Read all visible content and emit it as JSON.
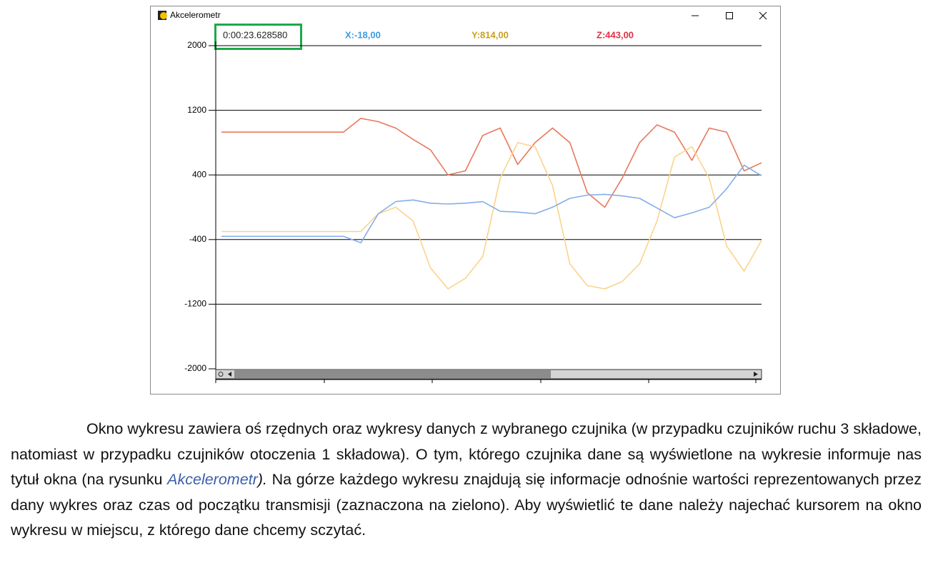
{
  "window": {
    "title": "Akcelerometr",
    "readouts": {
      "time": "0:00:23.628580",
      "x": "X:-18,00",
      "y": "Y:814,00",
      "z": "Z:443,00"
    }
  },
  "chart_data": {
    "type": "line",
    "categories": [
      null,
      null,
      null,
      null,
      null,
      null,
      null,
      null,
      null,
      null,
      null,
      null,
      null,
      null,
      null,
      null,
      null,
      null,
      null,
      null,
      null,
      null,
      null,
      null,
      null,
      null,
      null,
      null,
      null,
      null,
      null,
      null
    ],
    "ylim": [
      -2000,
      2000
    ],
    "yticks": [
      -2000,
      -1200,
      -400,
      400,
      1200,
      2000
    ],
    "grid": true,
    "series": [
      {
        "color": "#e8785c",
        "values": [
          930,
          930,
          930,
          930,
          930,
          930,
          930,
          930,
          1100,
          1060,
          980,
          840,
          710,
          400,
          450,
          890,
          980,
          530,
          800,
          980,
          800,
          180,
          0,
          360,
          800,
          1020,
          930,
          580,
          980,
          930,
          450,
          550
        ]
      },
      {
        "color": "#fcd38c",
        "values": [
          -300,
          -300,
          -300,
          -300,
          -300,
          -300,
          -300,
          -300,
          -300,
          -80,
          0,
          -170,
          -750,
          -1010,
          -880,
          -610,
          360,
          800,
          750,
          270,
          -700,
          -970,
          -1010,
          -920,
          -700,
          -170,
          620,
          750,
          360,
          -480,
          -790,
          -410
        ]
      },
      {
        "color": "#84aee8",
        "values": [
          -360,
          -360,
          -360,
          -360,
          -360,
          -360,
          -360,
          -360,
          -440,
          -80,
          70,
          90,
          50,
          40,
          50,
          70,
          -50,
          -60,
          -80,
          0,
          110,
          150,
          160,
          140,
          110,
          -10,
          -130,
          -70,
          0,
          230,
          520,
          390
        ]
      }
    ]
  },
  "paragraph": {
    "main": "Okno wykresu zawiera oś rzędnych oraz wykresy danych z wybranego czujnika (w przypadku czujników ruchu 3 składowe, natomiast w przypadku czujników otoczenia 1 składowa). O tym, którego czujnika dane są wyświetlone na wykresie informuje nas tytuł okna (na rysunku ",
    "emphasis": "Akcelerometr",
    "emphasis_end": ").",
    "rest": " Na górze każdego wykresu znajdują się informacje odnośnie wartości reprezentowanych przez dany wykres oraz czas od początku transmisji (zaznaczona na zielono). Aby wyświetlić te dane należy najechać kursorem na okno wykresu w miejscu, z którego dane chcemy sczytać."
  }
}
